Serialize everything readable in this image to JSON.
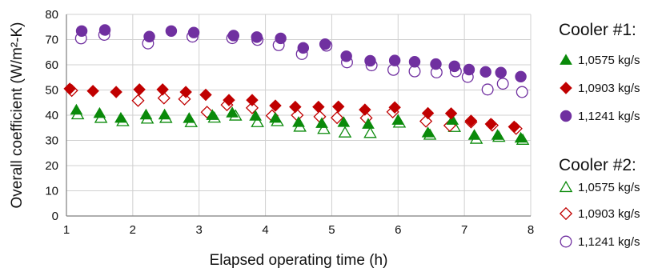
{
  "chart_data": {
    "type": "scatter",
    "xlabel": "Elapsed operating time (h)",
    "ylabel": "Overall coefficient (W/m²-K)",
    "xlim": [
      1,
      8
    ],
    "ylim": [
      0,
      80
    ],
    "xticks": [
      "1",
      "2",
      "3",
      "4",
      "5",
      "6",
      "7",
      "8"
    ],
    "yticks": [
      "0",
      "10",
      "20",
      "30",
      "40",
      "50",
      "60",
      "70",
      "80"
    ],
    "grid": true,
    "legend_position": "right",
    "groups": [
      {
        "name": "Cooler #1:",
        "series": [
          {
            "name": "1,0575 kg/s",
            "marker": "triangle",
            "filled": true,
            "color": "#0a8a0a",
            "points": [
              [
                1.15,
                42.1
              ],
              [
                1.5,
                40.8
              ],
              [
                1.82,
                38.9
              ],
              [
                2.2,
                40.2
              ],
              [
                2.48,
                40.2
              ],
              [
                2.85,
                38.8
              ],
              [
                3.2,
                40.0
              ],
              [
                3.5,
                41.0
              ],
              [
                3.85,
                39.7
              ],
              [
                4.15,
                38.9
              ],
              [
                4.5,
                37.2
              ],
              [
                4.85,
                36.8
              ],
              [
                5.18,
                37.2
              ],
              [
                5.55,
                36.5
              ],
              [
                6.0,
                38.1
              ],
              [
                6.45,
                33.1
              ],
              [
                6.82,
                38.1
              ],
              [
                7.15,
                32.1
              ],
              [
                7.5,
                32.1
              ],
              [
                7.85,
                31.0
              ]
            ]
          },
          {
            "name": "1,0903 kg/s",
            "marker": "diamond",
            "filled": true,
            "color": "#c00000",
            "points": [
              [
                1.05,
                50.5
              ],
              [
                1.4,
                49.6
              ],
              [
                1.75,
                49.2
              ],
              [
                2.1,
                50.2
              ],
              [
                2.45,
                50.2
              ],
              [
                2.8,
                49.2
              ],
              [
                3.1,
                48.1
              ],
              [
                3.45,
                46.0
              ],
              [
                3.8,
                46.0
              ],
              [
                4.15,
                43.8
              ],
              [
                4.45,
                43.3
              ],
              [
                4.8,
                43.3
              ],
              [
                5.1,
                43.4
              ],
              [
                5.5,
                42.2
              ],
              [
                5.95,
                43.1
              ],
              [
                6.45,
                40.8
              ],
              [
                6.8,
                40.7
              ],
              [
                7.1,
                37.8
              ],
              [
                7.4,
                36.5
              ],
              [
                7.75,
                35.4
              ]
            ]
          },
          {
            "name": "1,1241 kg/s",
            "marker": "circle",
            "filled": true,
            "color": "#7030a0",
            "points": [
              [
                1.23,
                73.4
              ],
              [
                1.58,
                73.8
              ],
              [
                2.25,
                71.2
              ],
              [
                2.58,
                73.4
              ],
              [
                2.92,
                72.8
              ],
              [
                3.52,
                71.6
              ],
              [
                3.87,
                71.0
              ],
              [
                4.23,
                70.5
              ],
              [
                4.57,
                66.7
              ],
              [
                4.9,
                68.2
              ],
              [
                5.22,
                63.4
              ],
              [
                5.58,
                61.6
              ],
              [
                5.95,
                61.7
              ],
              [
                6.25,
                61.2
              ],
              [
                6.57,
                60.3
              ],
              [
                6.85,
                59.4
              ],
              [
                7.07,
                58.1
              ],
              [
                7.32,
                57.2
              ],
              [
                7.55,
                56.9
              ],
              [
                7.85,
                55.3
              ]
            ]
          }
        ]
      },
      {
        "name": "Cooler #2:",
        "series": [
          {
            "name": "1,0575 kg/s",
            "marker": "triangle",
            "filled": false,
            "color": "#0a8a0a",
            "points": [
              [
                1.17,
                40.3
              ],
              [
                1.52,
                38.9
              ],
              [
                1.85,
                37.6
              ],
              [
                2.22,
                38.6
              ],
              [
                2.5,
                38.9
              ],
              [
                2.88,
                37.2
              ],
              [
                3.23,
                39.0
              ],
              [
                3.55,
                39.8
              ],
              [
                3.88,
                37.2
              ],
              [
                4.18,
                37.6
              ],
              [
                4.52,
                35.4
              ],
              [
                4.88,
                34.5
              ],
              [
                5.2,
                33.1
              ],
              [
                5.58,
                32.9
              ],
              [
                6.02,
                37.0
              ],
              [
                6.48,
                32.2
              ],
              [
                6.85,
                35.3
              ],
              [
                7.18,
                30.6
              ],
              [
                7.52,
                31.4
              ],
              [
                7.88,
                30.2
              ]
            ]
          },
          {
            "name": "1,0903 kg/s",
            "marker": "diamond",
            "filled": false,
            "color": "#c00000",
            "points": [
              [
                1.08,
                49.8
              ],
              [
                2.08,
                45.8
              ],
              [
                2.47,
                46.8
              ],
              [
                2.78,
                46.4
              ],
              [
                3.12,
                41.2
              ],
              [
                3.42,
                44.1
              ],
              [
                3.8,
                42.9
              ],
              [
                4.1,
                39.8
              ],
              [
                4.48,
                40.0
              ],
              [
                4.82,
                39.4
              ],
              [
                5.08,
                39.0
              ],
              [
                5.52,
                38.9
              ],
              [
                5.92,
                41.3
              ],
              [
                6.42,
                37.6
              ],
              [
                6.78,
                35.9
              ],
              [
                7.1,
                37.3
              ],
              [
                7.42,
                36.0
              ],
              [
                7.78,
                34.7
              ]
            ]
          },
          {
            "name": "1,1241 kg/s",
            "marker": "circle",
            "filled": false,
            "color": "#7030a0",
            "points": [
              [
                1.22,
                70.5
              ],
              [
                1.57,
                71.9
              ],
              [
                2.23,
                68.5
              ],
              [
                2.9,
                71.2
              ],
              [
                3.5,
                70.6
              ],
              [
                3.88,
                69.9
              ],
              [
                4.2,
                67.8
              ],
              [
                4.55,
                64.3
              ],
              [
                4.92,
                67.6
              ],
              [
                5.23,
                61.0
              ],
              [
                5.6,
                59.8
              ],
              [
                5.93,
                58.0
              ],
              [
                6.25,
                57.4
              ],
              [
                6.58,
                57.0
              ],
              [
                6.87,
                57.4
              ],
              [
                7.05,
                55.2
              ],
              [
                7.35,
                50.2
              ],
              [
                7.58,
                52.5
              ],
              [
                7.87,
                49.2
              ]
            ]
          }
        ]
      }
    ]
  }
}
